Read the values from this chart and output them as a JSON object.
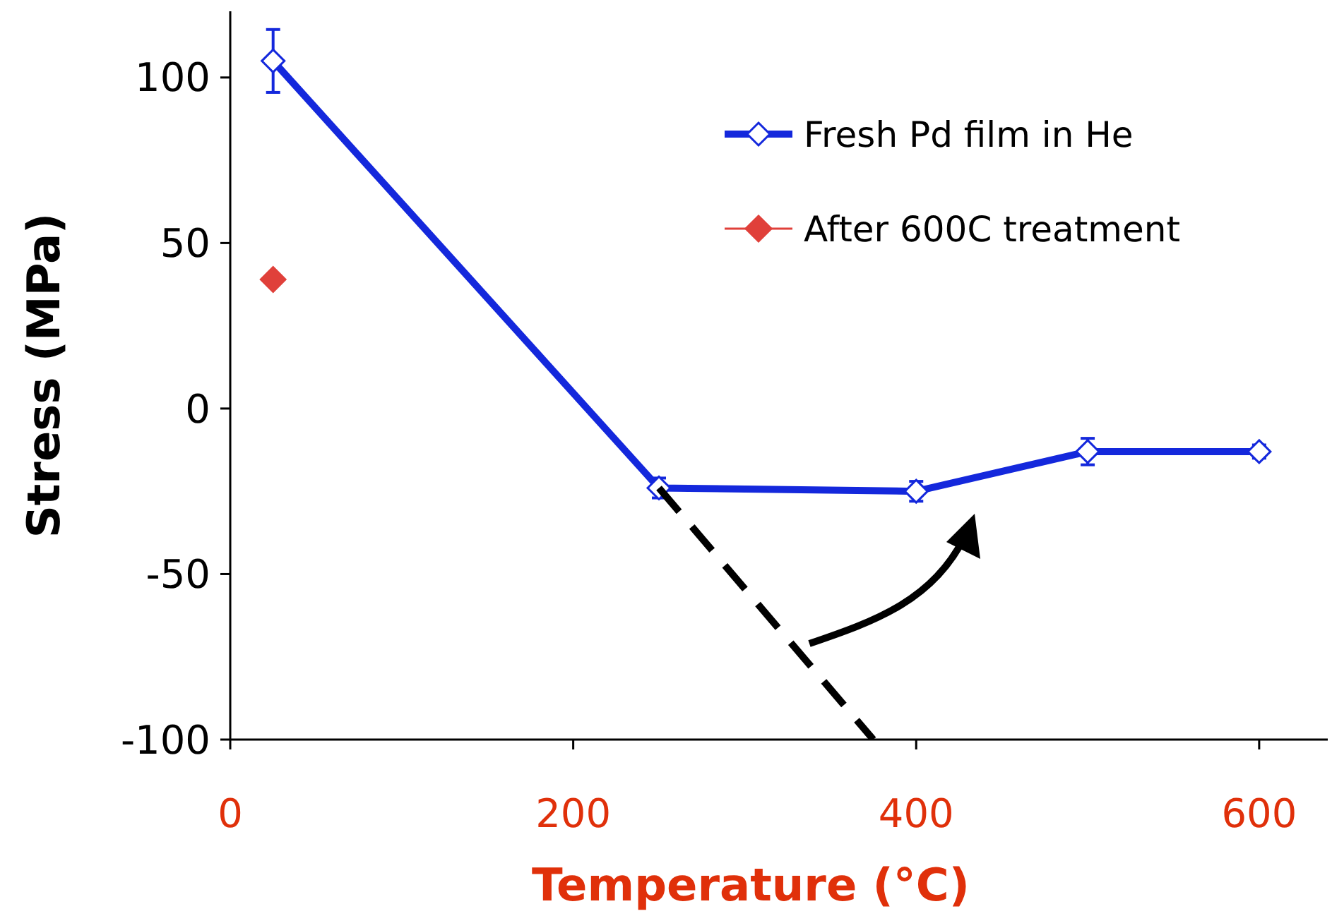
{
  "chart_data": {
    "type": "line",
    "xlabel": "Temperature (°C)",
    "ylabel": "Stress (MPa)",
    "xlim": [
      0,
      640
    ],
    "ylim": [
      -100,
      120
    ],
    "xticks": [
      0,
      200,
      400,
      600
    ],
    "yticks": [
      -100,
      -50,
      0,
      50,
      100
    ],
    "grid": false,
    "legend": "top right",
    "marker": "diamond",
    "series": [
      {
        "name": "Fresh Pd film in He",
        "color": "#1428dc",
        "x": [
          25,
          250,
          400,
          500,
          600
        ],
        "values": [
          105,
          -24,
          -25,
          -13,
          -13
        ],
        "errors": [
          9.5,
          3,
          3,
          4,
          2
        ]
      },
      {
        "name": "After 600C treatment",
        "type": "scatter",
        "color": "#e0403a",
        "x": [
          25
        ],
        "values": [
          39
        ]
      },
      {
        "color": "#000000",
        "line_style": "dashed",
        "marker": "none",
        "x": [
          250,
          375
        ],
        "values": [
          -24,
          -100
        ]
      }
    ]
  }
}
